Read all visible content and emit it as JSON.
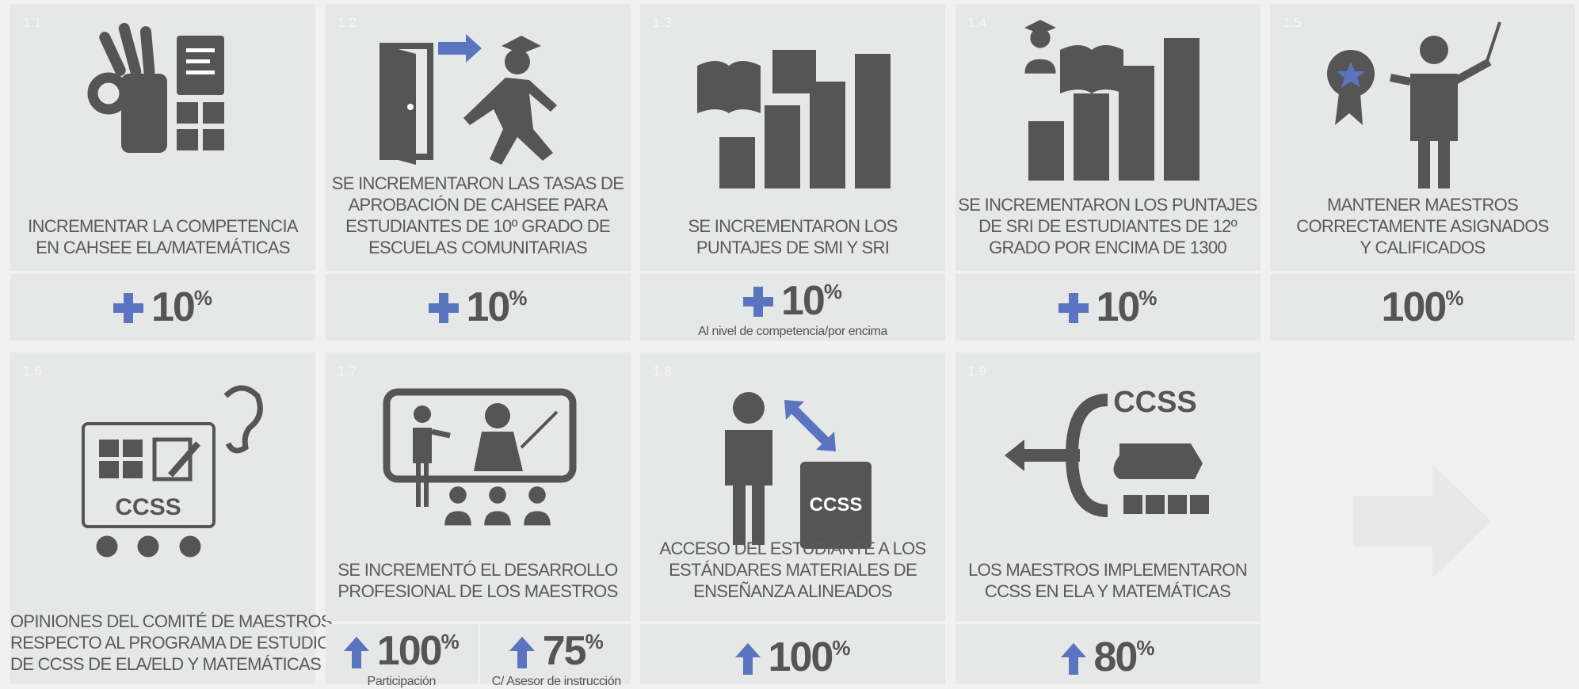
{
  "cards": [
    {
      "number": "1.1",
      "text": [
        "INCREMENTAR LA COMPETENCIA",
        "EN CAHSEE ELA/MATEMÁTICAS"
      ],
      "metrics": [
        {
          "value": 10,
          "unit": "%"
        }
      ]
    },
    {
      "number": "1.2",
      "text": [
        "SE INCREMENTARON LAS TASAS DE",
        "APROBACIÓN DE CAHSEE PARA",
        "ESTUDIANTES DE 10º GRADO DE",
        "ESCUELAS COMUNITARIAS"
      ],
      "metrics": [
        {
          "value": 10,
          "unit": "%"
        }
      ]
    },
    {
      "number": "1.3",
      "text": [
        "SE INCREMENTARON LOS",
        "PUNTAJES DE SMI Y SRI"
      ],
      "metrics": [
        {
          "value": 10,
          "unit": "%",
          "caption": "Al nivel de competencia/por encima"
        }
      ]
    },
    {
      "number": "1.4",
      "text": [
        "SE INCREMENTARON LOS PUNTAJES",
        "DE SRI DE ESTUDIANTES DE 12º",
        "GRADO POR ENCIMA DE 1300"
      ],
      "metrics": [
        {
          "value": 10,
          "unit": "%"
        }
      ]
    },
    {
      "number": "1.5",
      "text": [
        "MANTENER MAESTROS",
        "CORRECTAMENTE ASIGNADOS",
        "Y CALIFICADOS"
      ],
      "metrics": [
        {
          "value": 100,
          "unit": "%"
        }
      ]
    },
    {
      "number": "1.6",
      "text": [
        "OPINIONES DEL COMITÉ DE MAESTROS",
        "RESPECTO AL PROGRAMA DE ESTUDIOS",
        "DE CCSS DE ELA/ELD Y MATEMÁTICAS"
      ],
      "icon_text": "CCSS"
    },
    {
      "number": "1.7",
      "text": [
        "SE INCREMENTÓ EL DESARROLLO",
        "PROFESIONAL DE LOS MAESTROS"
      ],
      "metrics": [
        {
          "value": 100,
          "unit": "%",
          "caption": "Participación"
        },
        {
          "value": 75,
          "unit": "%",
          "caption": "C/ Asesor de instrucción"
        }
      ]
    },
    {
      "number": "1.8",
      "text": [
        "ACCESO DEL ESTUDIANTE A LOS",
        "ESTÁNDARES MATERIALES DE",
        "ENSEÑANZA ALINEADOS"
      ],
      "metrics": [
        {
          "value": 100,
          "unit": "%"
        }
      ],
      "icon_text": "CCSS"
    },
    {
      "number": "1.9",
      "text": [
        "LOS MAESTROS IMPLEMENTARON",
        "CCSS EN ELA Y MATEMÁTICAS"
      ],
      "metrics": [
        {
          "value": 80,
          "unit": "%"
        }
      ],
      "icon_text": "CCSS"
    }
  ]
}
